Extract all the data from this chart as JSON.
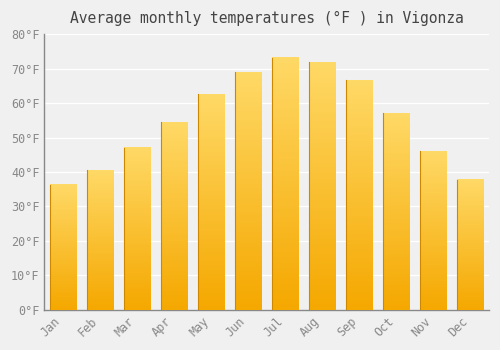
{
  "title": "Average monthly temperatures (°F ) in Vigonza",
  "months": [
    "Jan",
    "Feb",
    "Mar",
    "Apr",
    "May",
    "Jun",
    "Jul",
    "Aug",
    "Sep",
    "Oct",
    "Nov",
    "Dec"
  ],
  "values": [
    36.3,
    40.6,
    47.1,
    54.5,
    62.6,
    69.1,
    73.2,
    72.0,
    66.7,
    57.2,
    46.1,
    37.8
  ],
  "bar_color_bottom": "#F5A800",
  "bar_color_top": "#FFD966",
  "bar_edge_color": "#CC8800",
  "background_color": "#f0f0f0",
  "plot_bg_color": "#f0f0f0",
  "grid_color": "#ffffff",
  "ylim": [
    0,
    80
  ],
  "ytick_step": 10,
  "title_fontsize": 10.5,
  "tick_fontsize": 8.5,
  "title_color": "#444444",
  "tick_color": "#888888"
}
